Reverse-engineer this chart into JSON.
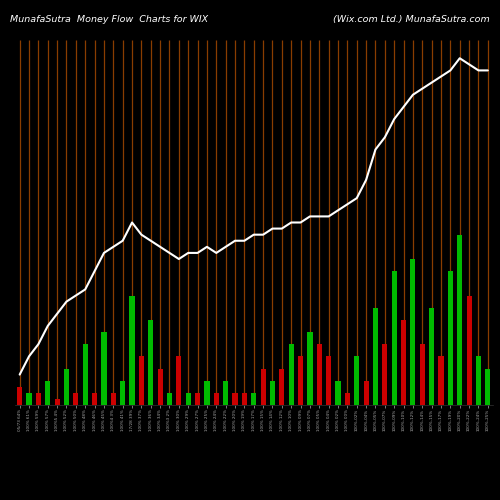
{
  "title_left": "MunafaSutra  Money Flow  Charts for WIX",
  "title_right": "(Wix.com Ltd.) MunafaSutra.com",
  "background_color": "#000000",
  "line_color": "#ffffff",
  "orange_vline_color": "#884400",
  "green_bar_color": "#00bb00",
  "red_bar_color": "#cc0000",
  "bar_values": [
    3,
    2,
    2,
    4,
    1,
    6,
    2,
    10,
    2,
    12,
    2,
    4,
    18,
    8,
    14,
    6,
    2,
    8,
    2,
    2,
    4,
    2,
    4,
    2,
    2,
    2,
    6,
    4,
    6,
    10,
    8,
    12,
    10,
    8,
    4,
    2,
    8,
    4,
    16,
    10,
    22,
    14,
    24,
    10,
    16,
    8,
    22,
    28,
    18,
    8,
    6
  ],
  "bar_colors": [
    "r",
    "g",
    "r",
    "g",
    "r",
    "g",
    "r",
    "g",
    "r",
    "g",
    "r",
    "g",
    "g",
    "r",
    "g",
    "r",
    "g",
    "r",
    "g",
    "r",
    "g",
    "r",
    "g",
    "r",
    "r",
    "g",
    "r",
    "g",
    "r",
    "g",
    "r",
    "g",
    "r",
    "r",
    "g",
    "r",
    "g",
    "r",
    "g",
    "r",
    "g",
    "r",
    "g",
    "r",
    "g",
    "r",
    "g",
    "g",
    "r",
    "g",
    "g"
  ],
  "line_y": [
    5,
    8,
    10,
    13,
    15,
    17,
    18,
    19,
    22,
    25,
    26,
    27,
    30,
    28,
    27,
    26,
    25,
    24,
    25,
    25,
    26,
    25,
    26,
    27,
    27,
    28,
    28,
    29,
    29,
    30,
    30,
    31,
    31,
    31,
    32,
    33,
    34,
    37,
    42,
    44,
    47,
    49,
    51,
    52,
    53,
    54,
    55,
    57,
    56,
    55,
    55
  ],
  "n_bars": 51,
  "ylim": [
    0,
    60
  ],
  "labels": [
    "05/73 64%",
    "100% 61%",
    "100% 59%",
    "100% 57%",
    "100%5 4%",
    "100% 52%",
    "100% 50%",
    "100% 48%",
    "100% 46%",
    "100% 45%",
    "100%4 3%",
    "100% 41%",
    "17/28 39%",
    "100% 37%",
    "100% 36%",
    "100% 34%",
    "100%3 2%",
    "100% 30%",
    "100% 29%",
    "100% 27%",
    "100% 25%",
    "100% 24%",
    "100% 22%",
    "100% 20%",
    "100% 19%",
    "100% 17%",
    "100% 15%",
    "100% 14%",
    "100% 12%",
    "100% 10%",
    "100% 09%",
    "100% 07%",
    "100% 05%",
    "100% 04%",
    "100% 02%",
    "100% 00%",
    "100%-02%",
    "100%-04%",
    "100%-05%",
    "100%-07%",
    "100%-09%",
    "100%-10%",
    "100%-12%",
    "100%-14%",
    "100%-15%",
    "100%-17%",
    "100%-19%",
    "100%-20%",
    "100%-22%",
    "100%-24%",
    "100%-25%"
  ]
}
